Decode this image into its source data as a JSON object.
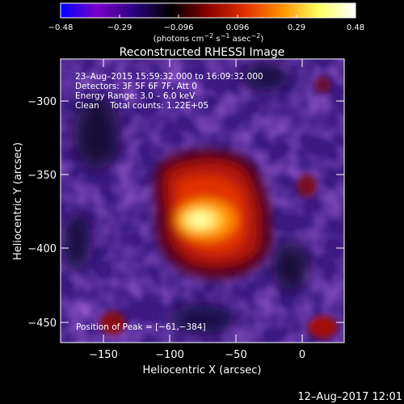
{
  "colorbar": {
    "ticks": [
      "−0.48",
      "−0.29",
      "−0.096",
      "0.096",
      "0.29",
      "0.48"
    ],
    "units_html": "(photons cm<tspan baseline-shift='super' font-size='8'>−2</tspan> s<tspan baseline-shift='super' font-size='8'>−1</tspan> asec<tspan baseline-shift='super' font-size='8'>−2</tspan>)",
    "gradient": [
      "#0000ff",
      "#7a00c8",
      "#2a0080",
      "#000000",
      "#8a0000",
      "#e03000",
      "#ff9000",
      "#ffff60",
      "#ffffff"
    ]
  },
  "title": "Reconstructed RHESSI Image",
  "info": {
    "line1": "23–Aug–2015 15:59:32.000 to 16:09:32.000",
    "line2": "Detectors: 3F 5F 6F 7F, Att 0",
    "line3": "Energy Range: 3.0 – 6.0 keV",
    "line4": "Clean    Total counts: 1.22E+05"
  },
  "peak_label": "Position of Peak = [−61,−384]",
  "axes": {
    "xlabel": "Heliocentric X (arcsec)",
    "ylabel": "Heliocentric Y (arcsec)",
    "xticks": [
      "−150",
      "−100",
      "−50",
      "0"
    ],
    "yticks": [
      "−300",
      "−350",
      "−400",
      "−450"
    ]
  },
  "timestamp": "12–Aug–2017 12:01"
}
